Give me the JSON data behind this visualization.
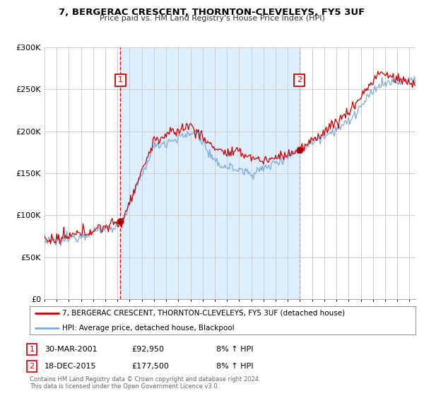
{
  "title": "7, BERGERAC CRESCENT, THORNTON-CLEVELEYS, FY5 3UF",
  "subtitle": "Price paid vs. HM Land Registry's House Price Index (HPI)",
  "legend_line1": "7, BERGERAC CRESCENT, THORNTON-CLEVELEYS, FY5 3UF (detached house)",
  "legend_line2": "HPI: Average price, detached house, Blackpool",
  "footer1": "Contains HM Land Registry data © Crown copyright and database right 2024.",
  "footer2": "This data is licensed under the Open Government Licence v3.0.",
  "sale1_date": 2001.24,
  "sale1_price": 92950,
  "sale1_label": "1",
  "sale1_text": "30-MAR-2001",
  "sale1_price_text": "£92,950",
  "sale1_hpi_text": "8% ↑ HPI",
  "sale2_date": 2015.96,
  "sale2_price": 177500,
  "sale2_label": "2",
  "sale2_text": "18-DEC-2015",
  "sale2_price_text": "£177,500",
  "sale2_hpi_text": "8% ↑ HPI",
  "red_line_color": "#cc0000",
  "blue_line_color": "#7aaadd",
  "shade_color": "#ddeeff",
  "background_color": "#ffffff",
  "grid_color": "#cccccc",
  "ylim": [
    0,
    300000
  ],
  "xlim_start": 1995.0,
  "xlim_end": 2025.5
}
